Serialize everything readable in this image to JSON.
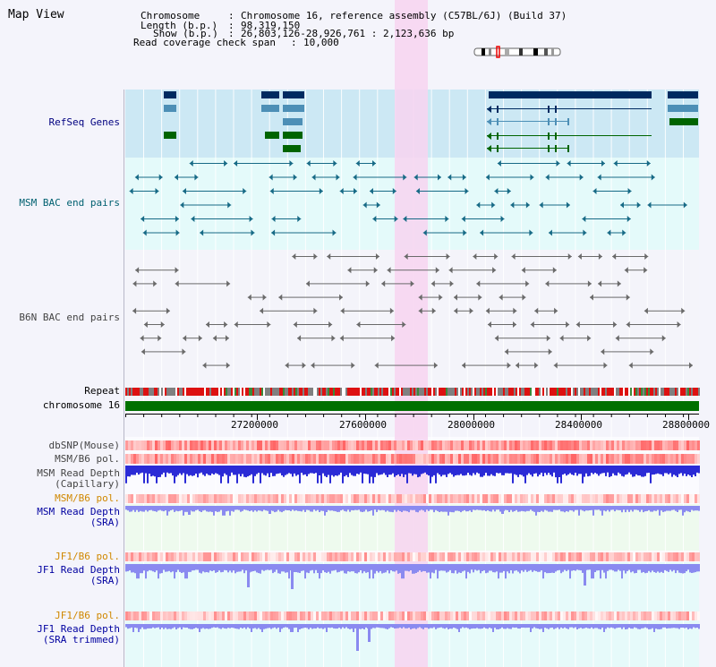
{
  "title": "Map View",
  "info": {
    "chromosome_label": "Chromosome",
    "chromosome_value": "Chromosome 16, reference assembly (C57BL/6J) (Build 37)",
    "length_label": "Length (b.p.)",
    "length_value": "98,319,150",
    "show_label": "Show (b.p.)",
    "show_value": "26,803,126-28,926,761 : 2,123,636 bp",
    "coverage_label": "Read coverage check span",
    "coverage_value": "10,000"
  },
  "axis": {
    "ticks": [
      "27200000",
      "27600000",
      "28000000",
      "28400000",
      "28800000"
    ],
    "chromosome_label": "chromosome 16"
  },
  "tracks": {
    "refseq": "RefSeq Genes",
    "msm_bac": "MSM BAC end pairs",
    "b6n_bac": "B6N BAC end pairs",
    "repeat": "Repeat",
    "dbsnp": "dbSNP(Mouse)",
    "msm_b6_pol": "MSM/B6 pol.",
    "msm_depth_cap_1": "MSM Read Depth",
    "msm_depth_cap_2": "(Capillary)",
    "msm_b6_pol_2": "MSM/B6 pol.",
    "msm_depth_sra_1": "MSM Read Depth",
    "msm_depth_sra_2": "(SRA)",
    "jf1_b6_pol": "JF1/B6 pol.",
    "jf1_depth_sra_1": "JF1 Read Depth",
    "jf1_depth_sra_2": "(SRA)",
    "jf1_b6_pol_2": "JF1/B6 pol.",
    "jf1_depth_trim_1": "JF1 Read Depth",
    "jf1_depth_trim_2": "(SRA trimmed)"
  },
  "colors": {
    "refseq_bg": "#cce8f4",
    "msm_bg": "#e4fafa",
    "b6n_bg": "#f4f4fa",
    "highlight": "#f7d3f0",
    "gene_navy": "#002a60",
    "gene_steel": "#4d8fb6",
    "gene_green": "#006400",
    "repeat_red": "#dd1111",
    "chrom_green": "#007000",
    "depth_blue": "#2b2bd6",
    "depth_lav": "#8a8af0"
  }
}
